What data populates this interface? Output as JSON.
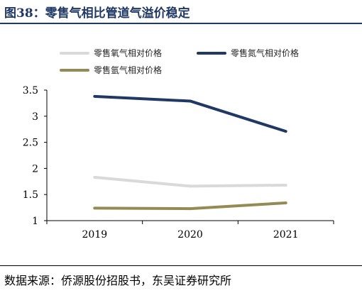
{
  "header": {
    "title": "图38：零售气相比管道气溢价稳定"
  },
  "source": {
    "text": "数据来源：侨源股份招股书，东吴证券研究所"
  },
  "colors": {
    "title": "#1f3864",
    "oxygen": "#d9d9d9",
    "nitrogen": "#1f3864",
    "argon": "#948a54"
  },
  "chart_data": {
    "type": "line",
    "title": "",
    "xlabel": "",
    "ylabel": "",
    "categories": [
      "2019",
      "2020",
      "2021"
    ],
    "ylim": [
      1,
      3.5
    ],
    "yticks": [
      "1",
      "1.5",
      "2",
      "2.5",
      "3",
      "3.5"
    ],
    "grid": false,
    "legend_position": "top",
    "series": [
      {
        "name": "零售氧气相对价格",
        "color": "#d9d9d9",
        "values": [
          1.83,
          1.66,
          1.68
        ]
      },
      {
        "name": "零售氮气相对价格",
        "color": "#1f3864",
        "values": [
          3.38,
          3.29,
          2.71
        ]
      },
      {
        "name": "零售氩气相对价格",
        "color": "#948a54",
        "values": [
          1.24,
          1.23,
          1.34
        ]
      }
    ]
  }
}
